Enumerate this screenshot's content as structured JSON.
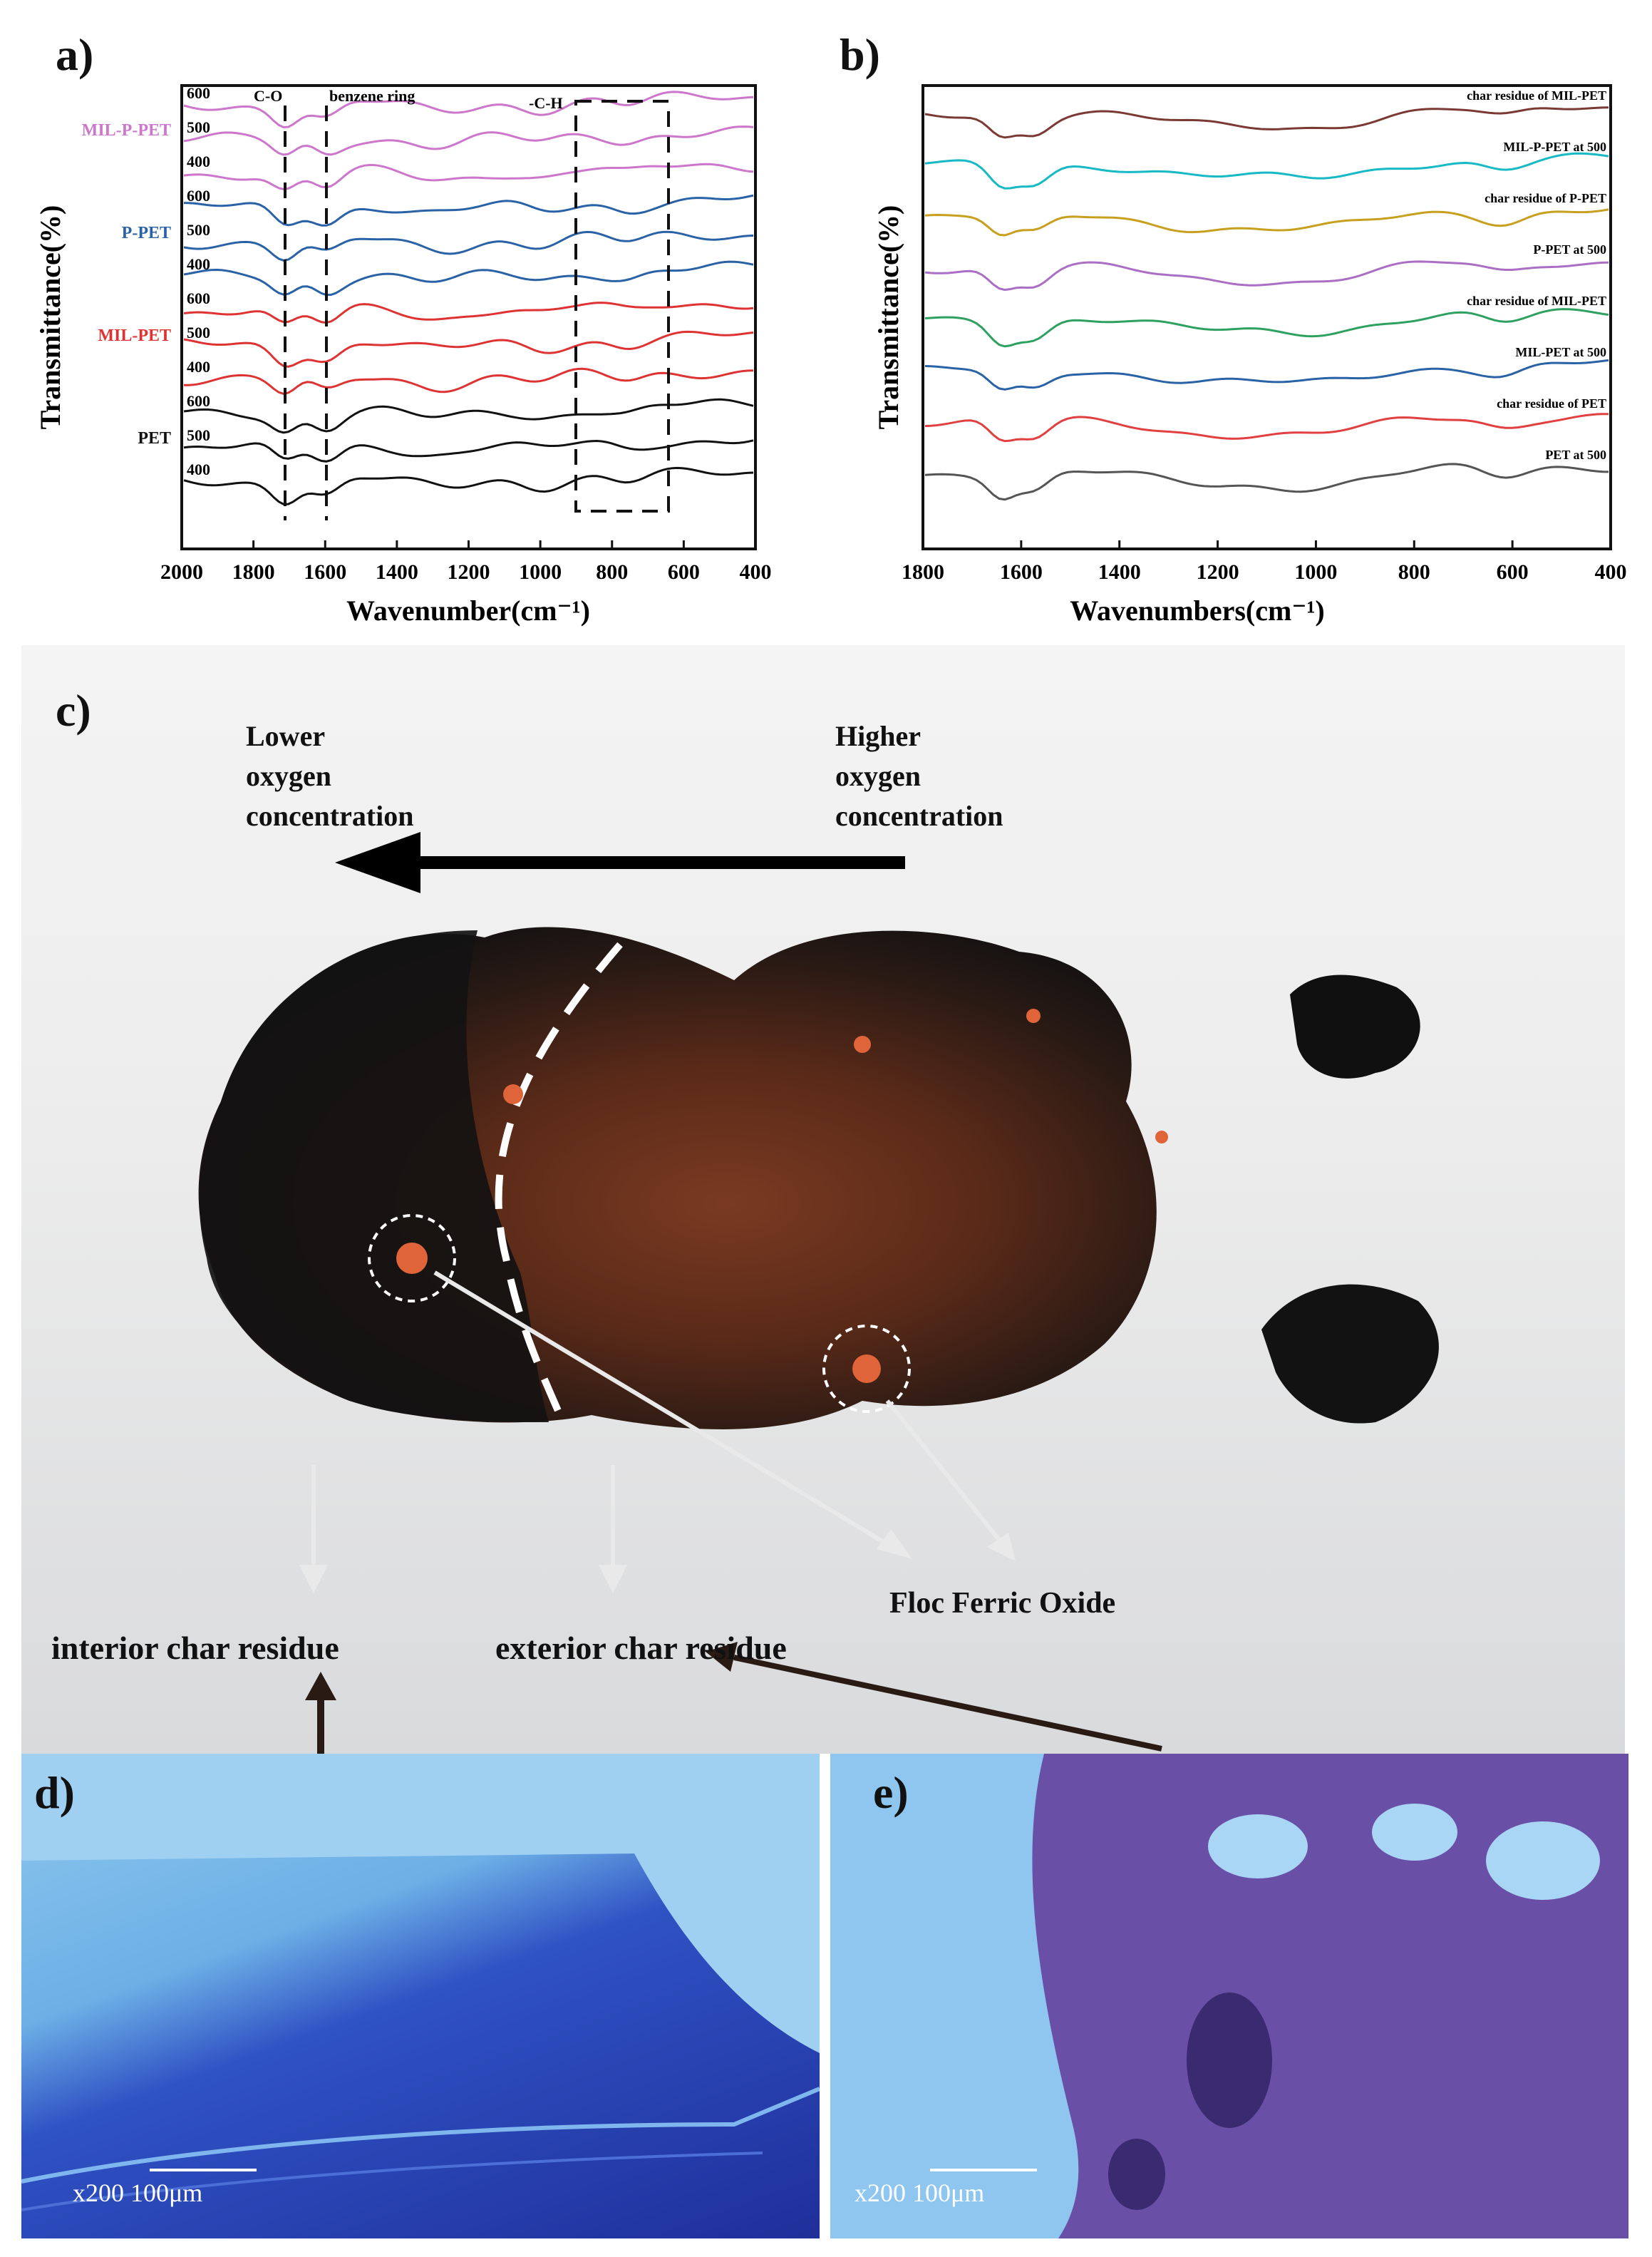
{
  "panels": {
    "a": "a)",
    "b": "b)",
    "c": "c)",
    "d": "d)",
    "e": "e)"
  },
  "chart_data": [
    {
      "type": "line",
      "panel": "a",
      "xlabel": "Wavenumber(cm⁻¹)",
      "ylabel": "Transmittance(%)",
      "xlim": [
        2000,
        400
      ],
      "xticks": [
        "2000",
        "1800",
        "1600",
        "1400",
        "1200",
        "1000",
        "800",
        "600",
        "400"
      ],
      "annotations": [
        "C-O",
        "benzene ring",
        "-C-H"
      ],
      "groups": [
        {
          "name": "MIL-P-PET",
          "color": "#cc77cc",
          "temps": [
            "600",
            "500",
            "400"
          ]
        },
        {
          "name": "P-PET",
          "color": "#2a62a6",
          "temps": [
            "600",
            "500",
            "400"
          ]
        },
        {
          "name": "MIL-PET",
          "color": "#dd3333",
          "temps": [
            "600",
            "500",
            "400"
          ]
        },
        {
          "name": "PET",
          "color": "#111111",
          "temps": [
            "600",
            "500",
            "400"
          ]
        }
      ]
    },
    {
      "type": "line",
      "panel": "b",
      "xlabel": "Wavenumbers(cm⁻¹)",
      "ylabel": "Transmittance(%)",
      "xlim": [
        1800,
        400
      ],
      "xticks": [
        "1800",
        "1600",
        "1400",
        "1200",
        "1000",
        "800",
        "600",
        "400"
      ],
      "series": [
        {
          "name": "char residue of MIL-PET",
          "color": "#7a3a33"
        },
        {
          "name": "MIL-P-PET at 500",
          "color": "#17b9c4"
        },
        {
          "name": "char residue of P-PET",
          "color": "#c8a020"
        },
        {
          "name": "P-PET at 500",
          "color": "#aa6fc4"
        },
        {
          "name": "char residue of MIL-PET",
          "color": "#2ea060"
        },
        {
          "name": "MIL-PET at 500",
          "color": "#2a62a6"
        },
        {
          "name": "char residue of PET",
          "color": "#e04040"
        },
        {
          "name": "PET at 500",
          "color": "#555555"
        }
      ]
    }
  ],
  "photo": {
    "lower_oxygen": [
      "Lower",
      "oxygen",
      "concentration"
    ],
    "higher_oxygen": [
      "Higher",
      "oxygen",
      "concentration"
    ],
    "floc": "Floc Ferric Oxide",
    "interior": "interior char residue",
    "exterior": "exterior char residue"
  },
  "micro": {
    "d_scale": "x200 100μm",
    "e_scale": "x200 100μm"
  }
}
